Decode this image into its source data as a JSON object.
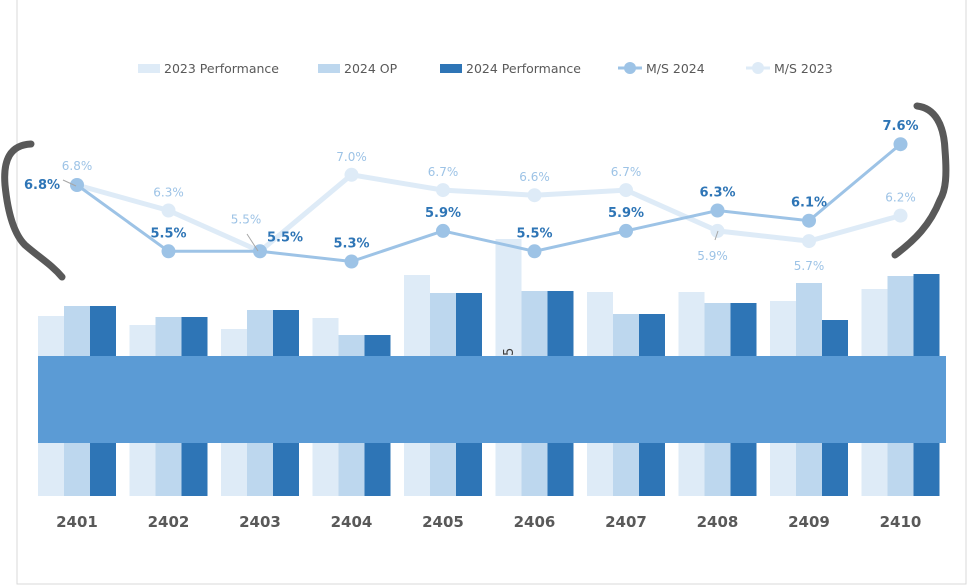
{
  "chart_data": {
    "type": "bar+line",
    "title": "",
    "categories": [
      "2401",
      "2402",
      "2403",
      "2404",
      "2405",
      "2406",
      "2407",
      "2408",
      "2409",
      "2410"
    ],
    "bar_series": [
      {
        "name": "2023 Performance",
        "color": "#DEEBF7",
        "values": [
          180,
          171,
          167,
          178,
          221,
          257,
          204,
          204,
          195,
          207
        ]
      },
      {
        "name": "2024 OP",
        "color": "#BDD7EE",
        "values": [
          190,
          179,
          186,
          161,
          203,
          205,
          182,
          193,
          213,
          220
        ]
      },
      {
        "name": "2024 Performance",
        "color": "#2E75B6",
        "values": [
          190,
          179,
          186,
          161,
          203,
          205,
          182,
          193,
          176,
          222
        ]
      }
    ],
    "line_series": [
      {
        "name": "M/S 2024",
        "color": "#9DC3E6",
        "label_color": "#2E75B6",
        "values": [
          6.8,
          5.5,
          5.5,
          5.3,
          5.9,
          5.5,
          5.9,
          6.3,
          6.1,
          7.6
        ],
        "labels": [
          "6.8%",
          "5.5%",
          "5.5%",
          "5.3%",
          "5.9%",
          "5.5%",
          "5.9%",
          "6.3%",
          "6.1%",
          "7.6%"
        ]
      },
      {
        "name": "M/S 2023",
        "color": "#DEEBF7",
        "label_color": "#9DC3E6",
        "values": [
          6.8,
          6.3,
          5.5,
          7.0,
          6.7,
          6.6,
          6.7,
          5.9,
          5.7,
          6.2
        ],
        "labels": [
          "6.8%",
          "6.3%",
          "5.5%",
          "7.0%",
          "6.7%",
          "6.6%",
          "6.7%",
          "5.9%",
          "5.7%",
          "6.2%"
        ]
      }
    ],
    "legend_placement": "top",
    "grid": false,
    "bar_axis_labels_shown": false,
    "obscuring_band_color": "#5B9BD5",
    "partial_text_fragment": "5",
    "annotation": "hand-drawn brackets",
    "annotation_color": "#595959"
  }
}
